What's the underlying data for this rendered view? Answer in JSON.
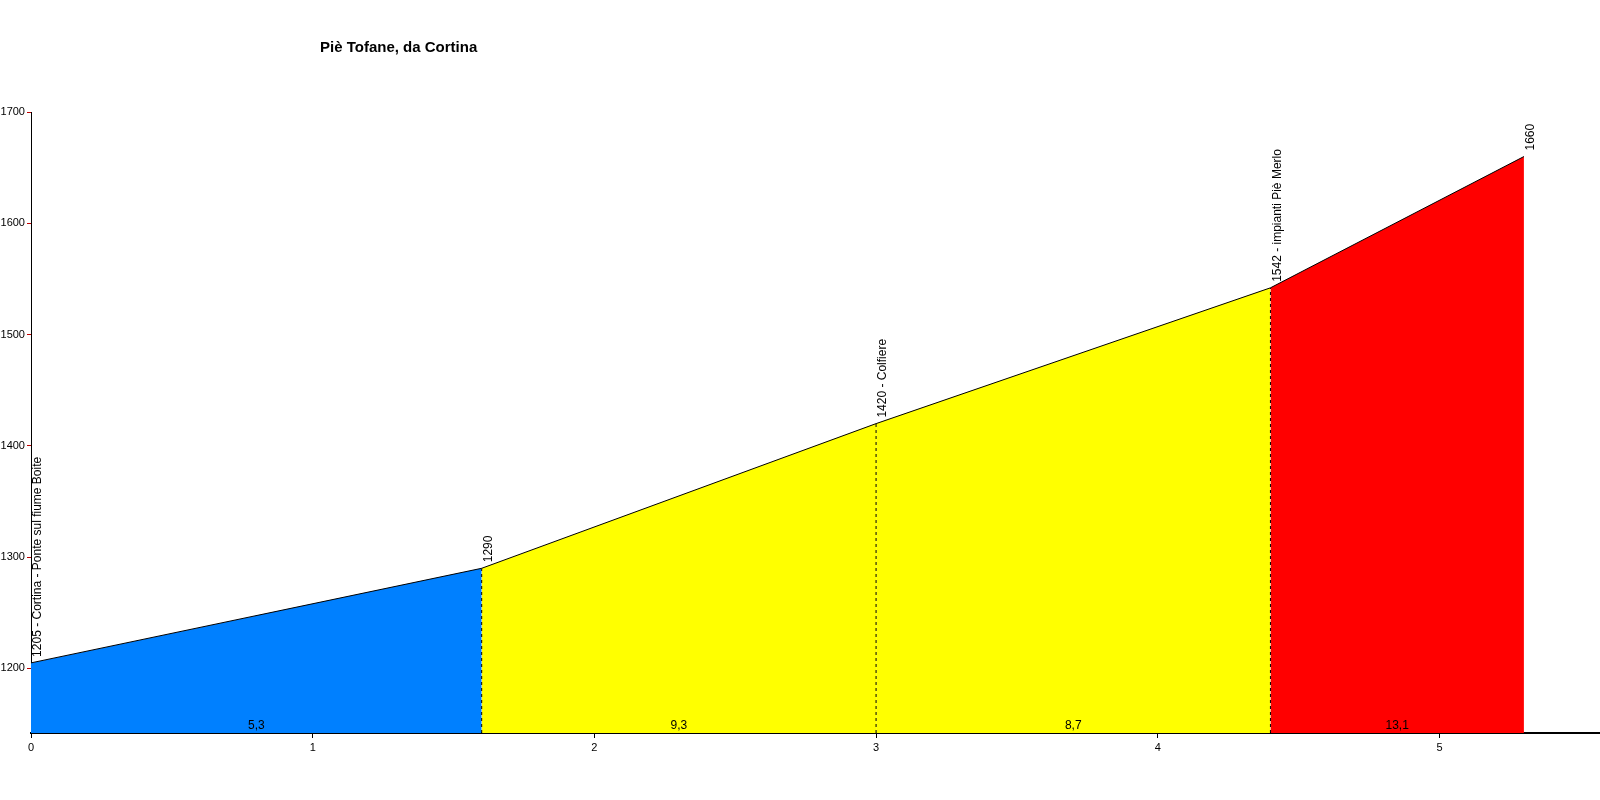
{
  "chart_data": {
    "type": "area",
    "title": "Piè Tofane, da Cortina",
    "series": [
      {
        "color": "#0080ff",
        "x": [
          0,
          1.6
        ],
        "values": [
          1205,
          1290
        ]
      },
      {
        "color": "#ffff00",
        "x": [
          1.6,
          3.0
        ],
        "values": [
          1290,
          1420
        ]
      },
      {
        "color": "#ffff00",
        "x": [
          3.0,
          4.4
        ],
        "values": [
          1420,
          1542
        ]
      },
      {
        "color": "#ff0000",
        "x": [
          4.4,
          5.3
        ],
        "values": [
          1542,
          1660
        ]
      }
    ],
    "xlim": [
      0,
      5.57
    ],
    "xticks": [
      0,
      1,
      2,
      3,
      4,
      5
    ],
    "ylim": [
      1142,
      1700
    ],
    "yticks": [
      1200,
      1300,
      1400,
      1500,
      1600,
      1700
    ],
    "grid": false,
    "legend": false,
    "ref_lines": [
      {
        "axis": "x",
        "value": 1.6,
        "color": "#000000",
        "line_style": "dashed"
      },
      {
        "axis": "x",
        "value": 3.0,
        "color": "#000000",
        "line_style": "dashed"
      },
      {
        "axis": "x",
        "value": 4.4,
        "color": "#000000",
        "line_style": "dashed"
      }
    ],
    "annotations": [
      {
        "text": "1205 - Cortina - Ponte sul fiume Boite",
        "x": 0,
        "y": 1205
      },
      {
        "text": "1290",
        "x": 1.6,
        "y": 1290
      },
      {
        "text": "1420 - Colfiere",
        "x": 3.0,
        "y": 1420
      },
      {
        "text": "1542 - impianti Piè Merlo",
        "x": 4.4,
        "y": 1542
      },
      {
        "text": "1660",
        "x": 5.3,
        "y": 1660
      },
      {
        "text": "5,3",
        "x": 0.8,
        "y": 1142
      },
      {
        "text": "9,3",
        "x": 2.3,
        "y": 1142
      },
      {
        "text": "8,7",
        "x": 3.7,
        "y": 1142
      },
      {
        "text": "13,1",
        "x": 4.85,
        "y": 1142
      }
    ]
  }
}
